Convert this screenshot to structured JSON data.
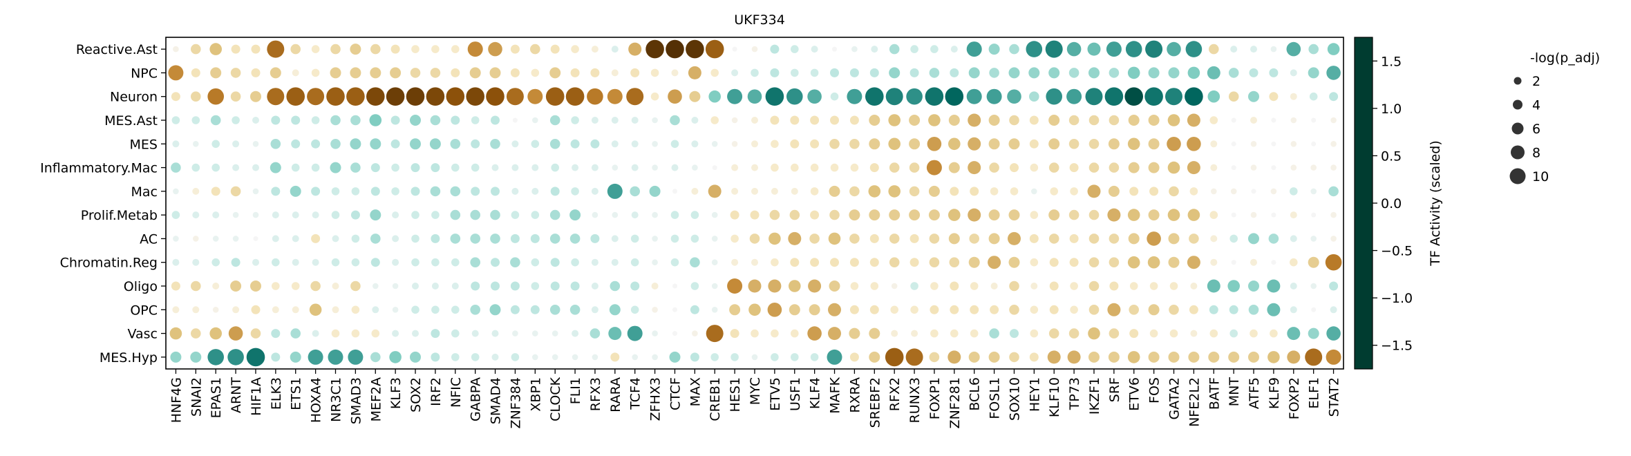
{
  "chart_data": {
    "type": "dotplot",
    "title": "UKF334",
    "rows": [
      "Reactive.Ast",
      "NPC",
      "Neuron",
      "MES.Ast",
      "MES",
      "Inflammatory.Mac",
      "Mac",
      "Prolif.Metab",
      "AC",
      "Chromatin.Reg",
      "Oligo",
      "OPC",
      "Vasc",
      "MES.Hyp"
    ],
    "columns": [
      "HNF4G",
      "SNAI2",
      "EPAS1",
      "ARNT",
      "HIF1A",
      "ELK3",
      "ETS1",
      "HOXA4",
      "NR3C1",
      "SMAD3",
      "MEF2A",
      "KLF3",
      "SOX2",
      "IRF2",
      "NFIC",
      "GABPA",
      "SMAD4",
      "ZNF384",
      "XBP1",
      "CLOCK",
      "FLI1",
      "RFX3",
      "RARA",
      "TCF4",
      "ZFHX3",
      "CTCF",
      "MAX",
      "CREB1",
      "HES1",
      "MYC",
      "ETV5",
      "USF1",
      "KLF4",
      "MAFK",
      "RXRA",
      "SREBF2",
      "RFX2",
      "RUNX3",
      "FOXP1",
      "ZNF281",
      "BCL6",
      "FOSL1",
      "SOX10",
      "HEY1",
      "KLF10",
      "TP73",
      "IKZF1",
      "SRF",
      "ETV6",
      "FOS",
      "GATA2",
      "NFE2L2",
      "BATF",
      "MNT",
      "ATF5",
      "KLF9",
      "FOXP2",
      "ELF1",
      "STAT2"
    ],
    "activity": [
      [
        -0.1,
        -0.5,
        -0.7,
        -0.4,
        -0.4,
        -1.2,
        -0.5,
        -0.3,
        -0.5,
        -0.6,
        -0.5,
        -0.4,
        -0.3,
        -0.3,
        -0.3,
        -1.0,
        -0.9,
        -0.4,
        -0.5,
        -0.4,
        -0.3,
        -0.2,
        0.2,
        -0.8,
        -1.7,
        -1.8,
        -1.7,
        -1.3,
        0.0,
        -0.1,
        0.4,
        0.3,
        0.2,
        0.0,
        0.1,
        0.2,
        0.5,
        0.3,
        0.3,
        0.2,
        1.0,
        0.6,
        0.5,
        1.1,
        1.2,
        0.9,
        0.8,
        1.0,
        1.1,
        1.2,
        0.9,
        1.1,
        -0.5,
        0.2,
        0.2,
        0.1,
        0.9,
        0.5,
        0.7
      ],
      [
        -1.0,
        -0.4,
        -0.6,
        -0.5,
        -0.4,
        -0.6,
        -0.2,
        -0.3,
        -0.6,
        -0.6,
        -0.6,
        -0.6,
        -0.5,
        -0.5,
        -0.4,
        -0.6,
        -0.6,
        -0.4,
        -0.3,
        -0.6,
        -0.4,
        -0.4,
        -0.2,
        -0.4,
        -0.3,
        -0.2,
        -0.8,
        -0.3,
        0.2,
        0.3,
        0.4,
        0.3,
        0.3,
        0.4,
        0.4,
        0.4,
        0.6,
        0.4,
        0.5,
        0.4,
        0.6,
        0.5,
        0.6,
        0.6,
        0.6,
        0.5,
        0.6,
        0.5,
        0.7,
        0.6,
        0.6,
        0.7,
        0.8,
        0.5,
        0.4,
        0.4,
        0.2,
        0.6,
        0.9
      ],
      [
        -0.4,
        -0.5,
        -1.1,
        -0.5,
        -0.6,
        -1.2,
        -1.3,
        -1.2,
        -1.3,
        -1.3,
        -1.5,
        -1.6,
        -1.6,
        -1.5,
        -1.4,
        -1.5,
        -1.4,
        -1.2,
        -1.0,
        -1.3,
        -1.3,
        -1.1,
        -1.0,
        -1.2,
        -0.3,
        -0.9,
        -0.6,
        0.7,
        1.0,
        0.9,
        1.3,
        1.1,
        0.9,
        0.3,
        1.0,
        1.3,
        1.2,
        1.1,
        1.3,
        1.4,
        1.0,
        1.0,
        0.9,
        0.5,
        1.1,
        1.0,
        1.2,
        1.3,
        1.6,
        1.3,
        1.2,
        1.4,
        0.7,
        -0.5,
        0.6,
        -0.4,
        -0.2,
        0.3,
        0.4
      ],
      [
        0.3,
        0.3,
        0.5,
        0.3,
        0.2,
        0.4,
        0.4,
        0.3,
        0.5,
        0.5,
        0.7,
        0.4,
        0.6,
        0.5,
        0.4,
        0.3,
        0.4,
        0.0,
        0.1,
        0.5,
        0.3,
        0.2,
        0.2,
        0.2,
        0.1,
        0.5,
        0.2,
        -0.3,
        -0.1,
        -0.2,
        -0.4,
        -0.4,
        -0.4,
        -0.4,
        -0.4,
        -0.6,
        -0.7,
        -0.6,
        -0.7,
        -0.6,
        -0.8,
        -0.6,
        -0.5,
        -0.4,
        -0.6,
        -0.5,
        -0.5,
        -0.5,
        -0.6,
        -0.6,
        -0.7,
        -0.8,
        -0.3,
        0.0,
        -0.2,
        0.0,
        -0.1,
        0.0,
        -0.1
      ],
      [
        0.2,
        0.1,
        0.3,
        0.2,
        0.1,
        0.5,
        0.4,
        0.4,
        0.5,
        0.6,
        0.6,
        0.4,
        0.6,
        0.6,
        0.5,
        0.4,
        0.5,
        0.2,
        0.3,
        0.5,
        0.4,
        0.4,
        0.2,
        0.2,
        0.1,
        0.3,
        0.2,
        0.1,
        -0.1,
        -0.2,
        -0.3,
        -0.4,
        -0.4,
        -0.5,
        -0.5,
        -0.6,
        -0.7,
        -0.6,
        -0.9,
        -0.7,
        -0.8,
        -0.6,
        -0.6,
        -0.4,
        -0.6,
        -0.5,
        -0.5,
        -0.6,
        -0.7,
        -0.6,
        -0.9,
        -0.9,
        -0.2,
        0.0,
        -0.1,
        0.0,
        -0.1,
        0.0,
        -0.1
      ],
      [
        0.5,
        0.3,
        0.3,
        0.2,
        0.2,
        0.6,
        0.3,
        0.3,
        0.6,
        0.5,
        0.4,
        0.3,
        0.4,
        0.4,
        0.3,
        0.3,
        0.2,
        0.2,
        0.2,
        0.3,
        0.2,
        0.2,
        0.1,
        0.2,
        0.1,
        0.2,
        0.1,
        0.0,
        -0.2,
        -0.2,
        -0.3,
        -0.3,
        -0.3,
        -0.3,
        -0.3,
        -0.4,
        -0.5,
        -0.5,
        -1.0,
        -0.6,
        -0.8,
        -0.5,
        -0.4,
        -0.3,
        -0.5,
        -0.4,
        -0.5,
        -0.5,
        -0.6,
        -0.6,
        -0.7,
        -0.8,
        -0.2,
        0.0,
        -0.1,
        0.0,
        -0.1,
        -0.1,
        -0.1
      ],
      [
        0.1,
        -0.2,
        -0.4,
        -0.5,
        0.1,
        0.4,
        0.6,
        0.4,
        0.3,
        0.3,
        0.4,
        0.3,
        0.4,
        0.5,
        0.5,
        0.4,
        0.4,
        0.2,
        0.2,
        0.4,
        0.3,
        0.2,
        1.0,
        0.5,
        0.6,
        0.0,
        -0.2,
        -0.8,
        -0.2,
        -0.2,
        -0.2,
        -0.2,
        -0.3,
        -0.6,
        -0.5,
        -0.7,
        -0.7,
        -0.5,
        -0.6,
        -0.4,
        -0.4,
        -0.3,
        -0.3,
        0.1,
        -0.3,
        -0.3,
        -0.8,
        -0.6,
        -0.4,
        -0.4,
        -0.5,
        -0.3,
        -0.1,
        -0.1,
        0.0,
        -0.1,
        0.3,
        0.1,
        0.5
      ],
      [
        0.3,
        0.2,
        0.2,
        0.1,
        0.1,
        0.2,
        0.2,
        0.2,
        0.3,
        0.4,
        0.6,
        0.2,
        0.3,
        0.3,
        0.5,
        0.5,
        0.5,
        0.3,
        0.3,
        0.5,
        0.6,
        0.1,
        0.1,
        0.2,
        0.1,
        0.3,
        0.3,
        0.1,
        -0.4,
        -0.4,
        -0.5,
        -0.5,
        -0.4,
        -0.5,
        -0.6,
        -0.6,
        -0.6,
        -0.6,
        -0.6,
        -0.7,
        -0.8,
        -0.6,
        -0.6,
        -0.3,
        -0.6,
        -0.5,
        -0.5,
        -0.8,
        -0.7,
        -0.6,
        -0.7,
        -0.7,
        -0.3,
        0.0,
        -0.1,
        0.0,
        -0.2,
        0.0,
        -0.1
      ],
      [
        0.1,
        -0.1,
        0.1,
        0.1,
        0.0,
        0.2,
        0.2,
        -0.4,
        0.2,
        0.3,
        0.5,
        0.2,
        0.3,
        0.4,
        0.5,
        0.5,
        0.5,
        0.4,
        0.4,
        0.5,
        0.5,
        0.4,
        0.2,
        0.3,
        0.1,
        0.3,
        0.3,
        0.1,
        -0.3,
        -0.5,
        -0.7,
        -0.8,
        -0.5,
        -0.7,
        -0.5,
        -0.4,
        -0.5,
        -0.4,
        -0.5,
        -0.6,
        -0.5,
        -0.6,
        -0.8,
        -0.4,
        -0.5,
        -0.4,
        -0.5,
        -0.5,
        -0.6,
        -0.9,
        -0.6,
        -0.5,
        -0.2,
        0.3,
        0.6,
        0.5,
        0.2,
        0.1,
        -0.1
      ],
      [
        0.2,
        0.2,
        0.3,
        0.4,
        0.2,
        0.3,
        0.2,
        0.2,
        0.3,
        0.3,
        0.4,
        0.2,
        0.3,
        0.3,
        0.3,
        0.5,
        0.4,
        0.5,
        0.3,
        0.4,
        0.3,
        0.2,
        0.2,
        0.3,
        0.1,
        0.3,
        0.5,
        0.1,
        -0.2,
        -0.2,
        -0.3,
        -0.4,
        -0.4,
        -0.4,
        -0.4,
        -0.4,
        -0.5,
        -0.4,
        -0.5,
        -0.5,
        -0.6,
        -0.8,
        -0.6,
        -0.3,
        -0.4,
        -0.4,
        -0.5,
        -0.5,
        -0.7,
        -0.7,
        -0.6,
        -0.8,
        -0.2,
        0.0,
        -0.2,
        0.0,
        -0.3,
        -0.6,
        -1.1
      ],
      [
        -0.4,
        -0.5,
        -0.2,
        -0.6,
        -0.6,
        -0.3,
        -0.3,
        -0.5,
        -0.2,
        -0.5,
        0.1,
        0.1,
        0.2,
        0.2,
        0.2,
        0.4,
        0.4,
        0.4,
        0.3,
        0.4,
        0.4,
        0.2,
        0.5,
        0.4,
        -0.2,
        0.0,
        0.3,
        0.1,
        -1.0,
        -0.8,
        -0.8,
        -0.7,
        -0.8,
        -0.6,
        -0.3,
        -0.3,
        -0.1,
        0.3,
        -0.3,
        -0.4,
        -0.3,
        -0.2,
        -0.5,
        -0.2,
        -0.4,
        -0.3,
        -0.5,
        -0.4,
        -0.3,
        -0.3,
        -0.3,
        -0.2,
        0.8,
        0.7,
        0.6,
        0.8,
        0.2,
        0.1,
        0.4
      ],
      [
        -0.2,
        -0.2,
        -0.1,
        -0.2,
        -0.4,
        -0.2,
        -0.2,
        -0.7,
        -0.2,
        -0.3,
        0.2,
        0.1,
        0.3,
        0.3,
        0.3,
        0.5,
        0.6,
        0.4,
        0.4,
        0.5,
        0.5,
        0.2,
        0.6,
        0.3,
        -0.1,
        0.0,
        0.4,
        0.1,
        -0.6,
        -0.7,
        -0.9,
        -0.6,
        -0.6,
        -0.8,
        -0.4,
        -0.4,
        -0.3,
        -0.3,
        -0.4,
        -0.4,
        -0.4,
        -0.4,
        -0.5,
        -0.3,
        -0.4,
        -0.3,
        -0.5,
        -0.8,
        -0.5,
        -0.6,
        -0.5,
        -0.4,
        0.4,
        0.4,
        0.5,
        0.8,
        0.2,
        0.0,
        0.2
      ],
      [
        -0.7,
        -0.5,
        -0.7,
        -0.9,
        -0.5,
        0.4,
        0.5,
        0.2,
        -0.3,
        -0.3,
        -0.3,
        0.2,
        0.2,
        0.4,
        0.3,
        0.2,
        0.2,
        0.1,
        0.1,
        0.1,
        0.2,
        0.5,
        0.8,
        1.0,
        0.1,
        0.0,
        -0.1,
        -1.2,
        -0.4,
        -0.3,
        -0.3,
        -0.3,
        -0.9,
        -0.8,
        -0.6,
        -0.6,
        -0.2,
        -0.2,
        -0.3,
        -0.3,
        -0.3,
        0.5,
        0.4,
        -0.3,
        -0.5,
        -0.5,
        -0.7,
        -0.5,
        -0.4,
        -0.3,
        -0.3,
        -0.2,
        -0.3,
        0.3,
        -0.3,
        -0.3,
        0.8,
        0.6,
        0.9
      ],
      [
        0.6,
        0.6,
        1.1,
        1.1,
        1.3,
        0.4,
        0.6,
        1.0,
        1.0,
        1.0,
        0.5,
        0.7,
        0.6,
        0.4,
        0.3,
        0.3,
        0.2,
        0.3,
        0.1,
        0.1,
        0.1,
        0.1,
        -0.4,
        0.1,
        0.1,
        0.6,
        0.4,
        0.3,
        0.3,
        0.1,
        0.3,
        0.3,
        0.3,
        1.0,
        -0.4,
        -0.6,
        -1.3,
        -1.2,
        -0.5,
        -0.8,
        -0.6,
        -0.6,
        -0.5,
        -0.4,
        -0.8,
        -0.8,
        -0.6,
        -0.6,
        -0.7,
        -0.6,
        -0.6,
        -0.6,
        -0.6,
        -0.6,
        -0.6,
        -0.7,
        -0.8,
        -1.2,
        -1.0
      ]
    ],
    "colorbar": {
      "label": "TF Activity (scaled)",
      "range": [
        -1.75,
        1.75
      ],
      "ticks": [
        1.5,
        1.0,
        0.5,
        0.0,
        -0.5,
        -1.0,
        -1.5
      ],
      "tick_labels": [
        "1.5",
        "1.0",
        "0.5",
        "0.0",
        "−0.5",
        "−1.0",
        "−1.5"
      ],
      "colormap": "BrBG_r",
      "colors": [
        "#003c30",
        "#01665e",
        "#35978f",
        "#80cdc1",
        "#c7eae5",
        "#f5f5f5",
        "#f6e8c3",
        "#dfc27d",
        "#bf812d",
        "#8c510a",
        "#543005"
      ]
    },
    "size_legend": {
      "title": "-log(p_adj)",
      "values": [
        2,
        4,
        6,
        8,
        10
      ],
      "labels": [
        "2",
        "4",
        "6",
        "8",
        "10"
      ],
      "marker_color": "#333333"
    }
  }
}
